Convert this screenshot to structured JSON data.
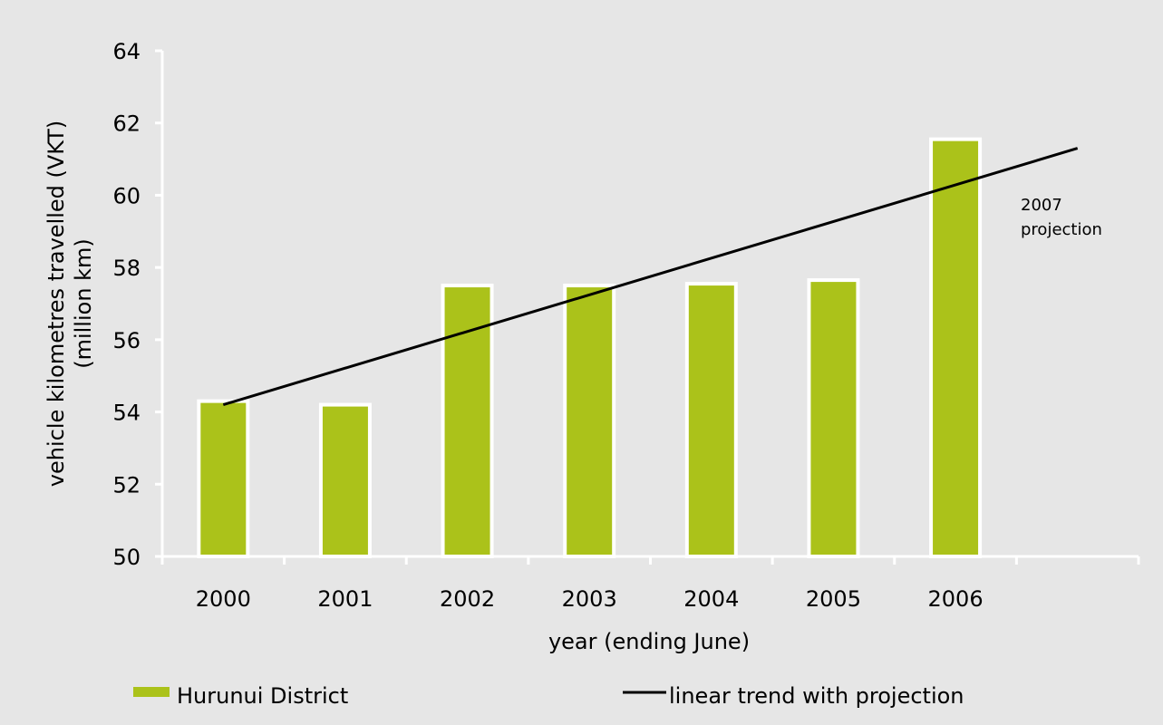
{
  "chart_data": {
    "type": "bar",
    "categories": [
      "2000",
      "2001",
      "2002",
      "2003",
      "2004",
      "2005",
      "2006"
    ],
    "series": [
      {
        "name": "Hurunui District",
        "values": [
          54.3,
          54.2,
          57.5,
          57.5,
          57.55,
          57.65,
          61.55
        ],
        "color": "#abc21a"
      }
    ],
    "trend": {
      "name": "linear trend with projection",
      "start": {
        "x": "2000",
        "y": 54.2
      },
      "end": {
        "x": "2007",
        "y": 61.3
      },
      "color": "#000000"
    },
    "annotation": {
      "line1": "2007",
      "line2": "projection"
    },
    "xlabel": "year (ending June)",
    "ylabel_line1": "vehicle kilometres travelled (VKT)",
    "ylabel_line2": "(million km)",
    "ylim": [
      50,
      64
    ],
    "yticks": [
      50,
      52,
      54,
      56,
      58,
      60,
      62,
      64
    ],
    "grid": false,
    "legend_position": "bottom"
  }
}
